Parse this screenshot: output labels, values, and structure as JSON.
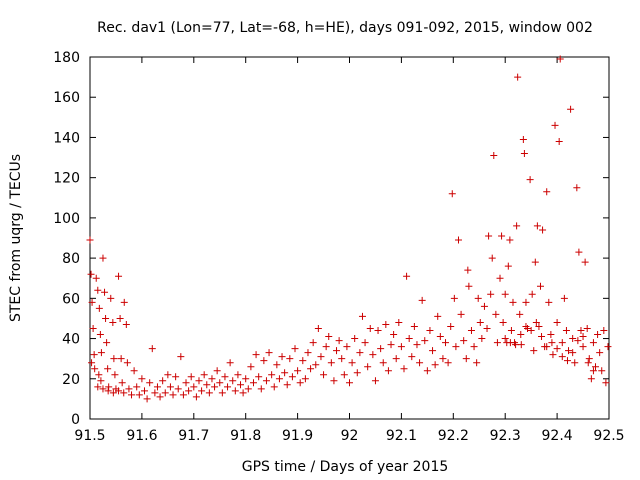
{
  "chart_data": {
    "type": "scatter",
    "title": "Rec. dav1 (Lon=77, Lat=-68, h=HE), days 091-092, 2015, window 002",
    "xlabel": "GPS time / Days of year 2015",
    "ylabel": "STEC from uqrg / TECUs",
    "xlim": [
      91.5,
      92.5
    ],
    "ylim": [
      0,
      180
    ],
    "xticks": [
      "91.5",
      "91.6",
      "91.7",
      "91.8",
      "91.9",
      "92",
      "92.1",
      "92.2",
      "92.3",
      "92.4",
      "92.5"
    ],
    "yticks": [
      "0",
      "20",
      "40",
      "60",
      "80",
      "100",
      "120",
      "140",
      "160",
      "180"
    ],
    "grid": false,
    "marker": "plus",
    "color": "#cc0000",
    "series": [
      {
        "name": "STEC",
        "points": [
          [
            91.5,
            89
          ],
          [
            91.502,
            72
          ],
          [
            91.504,
            58
          ],
          [
            91.506,
            45
          ],
          [
            91.508,
            32
          ],
          [
            91.503,
            28
          ],
          [
            91.509,
            25
          ],
          [
            91.512,
            70
          ],
          [
            91.515,
            64
          ],
          [
            91.518,
            55
          ],
          [
            91.52,
            42
          ],
          [
            91.522,
            33
          ],
          [
            91.517,
            22
          ],
          [
            91.521,
            19
          ],
          [
            91.525,
            80
          ],
          [
            91.528,
            63
          ],
          [
            91.53,
            50
          ],
          [
            91.532,
            38
          ],
          [
            91.534,
            25
          ],
          [
            91.536,
            16
          ],
          [
            91.54,
            60
          ],
          [
            91.544,
            48
          ],
          [
            91.546,
            30
          ],
          [
            91.548,
            22
          ],
          [
            91.55,
            15
          ],
          [
            91.555,
            71
          ],
          [
            91.558,
            50
          ],
          [
            91.56,
            30
          ],
          [
            91.562,
            18
          ],
          [
            91.566,
            58
          ],
          [
            91.57,
            47
          ],
          [
            91.572,
            28
          ],
          [
            91.575,
            15
          ],
          [
            91.515,
            16
          ],
          [
            91.525,
            15
          ],
          [
            91.535,
            14
          ],
          [
            91.545,
            13
          ],
          [
            91.555,
            14
          ],
          [
            91.565,
            13
          ],
          [
            91.58,
            12
          ],
          [
            91.585,
            24
          ],
          [
            91.59,
            16
          ],
          [
            91.595,
            12
          ],
          [
            91.6,
            20
          ],
          [
            91.605,
            14
          ],
          [
            91.61,
            10
          ],
          [
            91.615,
            18
          ],
          [
            91.62,
            35
          ],
          [
            91.625,
            13
          ],
          [
            91.63,
            16
          ],
          [
            91.635,
            11
          ],
          [
            91.64,
            19
          ],
          [
            91.645,
            13
          ],
          [
            91.65,
            22
          ],
          [
            91.655,
            16
          ],
          [
            91.66,
            12
          ],
          [
            91.665,
            21
          ],
          [
            91.67,
            15
          ],
          [
            91.675,
            31
          ],
          [
            91.68,
            12
          ],
          [
            91.685,
            18
          ],
          [
            91.69,
            14
          ],
          [
            91.695,
            21
          ],
          [
            91.7,
            16
          ],
          [
            91.705,
            11
          ],
          [
            91.71,
            19
          ],
          [
            91.715,
            14
          ],
          [
            91.72,
            22
          ],
          [
            91.725,
            17
          ],
          [
            91.73,
            13
          ],
          [
            91.735,
            20
          ],
          [
            91.74,
            16
          ],
          [
            91.745,
            24
          ],
          [
            91.75,
            18
          ],
          [
            91.755,
            13
          ],
          [
            91.76,
            21
          ],
          [
            91.765,
            16
          ],
          [
            91.77,
            28
          ],
          [
            91.775,
            19
          ],
          [
            91.78,
            14
          ],
          [
            91.785,
            22
          ],
          [
            91.79,
            17
          ],
          [
            91.795,
            13
          ],
          [
            91.8,
            20
          ],
          [
            91.805,
            15
          ],
          [
            91.81,
            26
          ],
          [
            91.815,
            18
          ],
          [
            91.82,
            32
          ],
          [
            91.825,
            21
          ],
          [
            91.83,
            15
          ],
          [
            91.835,
            29
          ],
          [
            91.84,
            19
          ],
          [
            91.845,
            33
          ],
          [
            91.85,
            22
          ],
          [
            91.855,
            16
          ],
          [
            91.86,
            27
          ],
          [
            91.865,
            20
          ],
          [
            91.87,
            31
          ],
          [
            91.875,
            23
          ],
          [
            91.88,
            17
          ],
          [
            91.885,
            30
          ],
          [
            91.89,
            21
          ],
          [
            91.895,
            35
          ],
          [
            91.9,
            24
          ],
          [
            91.905,
            18
          ],
          [
            91.91,
            29
          ],
          [
            91.915,
            20
          ],
          [
            91.92,
            33
          ],
          [
            91.925,
            25
          ],
          [
            91.93,
            38
          ],
          [
            91.935,
            27
          ],
          [
            91.94,
            45
          ],
          [
            91.945,
            31
          ],
          [
            91.95,
            22
          ],
          [
            91.955,
            36
          ],
          [
            91.96,
            41
          ],
          [
            91.965,
            28
          ],
          [
            91.97,
            19
          ],
          [
            91.975,
            34
          ],
          [
            91.98,
            39
          ],
          [
            91.985,
            30
          ],
          [
            91.99,
            22
          ],
          [
            91.995,
            36
          ],
          [
            92.0,
            18
          ],
          [
            92.005,
            28
          ],
          [
            92.01,
            40
          ],
          [
            92.015,
            23
          ],
          [
            92.02,
            33
          ],
          [
            92.025,
            51
          ],
          [
            92.03,
            38
          ],
          [
            92.035,
            26
          ],
          [
            92.04,
            45
          ],
          [
            92.045,
            32
          ],
          [
            92.05,
            19
          ],
          [
            92.055,
            44
          ],
          [
            92.06,
            35
          ],
          [
            92.065,
            28
          ],
          [
            92.07,
            47
          ],
          [
            92.075,
            24
          ],
          [
            92.08,
            37
          ],
          [
            92.085,
            42
          ],
          [
            92.09,
            30
          ],
          [
            92.095,
            48
          ],
          [
            92.1,
            36
          ],
          [
            92.105,
            25
          ],
          [
            92.11,
            71
          ],
          [
            92.115,
            40
          ],
          [
            92.12,
            31
          ],
          [
            92.125,
            46
          ],
          [
            92.13,
            37
          ],
          [
            92.135,
            28
          ],
          [
            92.14,
            59
          ],
          [
            92.145,
            39
          ],
          [
            92.15,
            24
          ],
          [
            92.155,
            44
          ],
          [
            92.16,
            34
          ],
          [
            92.165,
            27
          ],
          [
            92.17,
            51
          ],
          [
            92.175,
            41
          ],
          [
            92.18,
            30
          ],
          [
            92.185,
            38
          ],
          [
            92.19,
            28
          ],
          [
            92.195,
            46
          ],
          [
            92.198,
            112
          ],
          [
            92.202,
            60
          ],
          [
            92.205,
            36
          ],
          [
            92.21,
            89
          ],
          [
            92.215,
            52
          ],
          [
            92.22,
            39
          ],
          [
            92.225,
            30
          ],
          [
            92.228,
            74
          ],
          [
            92.23,
            66
          ],
          [
            92.235,
            44
          ],
          [
            92.24,
            36
          ],
          [
            92.245,
            28
          ],
          [
            92.248,
            60
          ],
          [
            92.252,
            48
          ],
          [
            92.255,
            40
          ],
          [
            92.26,
            56
          ],
          [
            92.265,
            45
          ],
          [
            92.268,
            91
          ],
          [
            92.272,
            62
          ],
          [
            92.275,
            80
          ],
          [
            92.278,
            131
          ],
          [
            92.282,
            52
          ],
          [
            92.285,
            38
          ],
          [
            92.29,
            70
          ],
          [
            92.293,
            91
          ],
          [
            92.296,
            48
          ],
          [
            92.3,
            62
          ],
          [
            92.303,
            38
          ],
          [
            92.306,
            76
          ],
          [
            92.309,
            89
          ],
          [
            92.312,
            44
          ],
          [
            92.315,
            58
          ],
          [
            92.318,
            38
          ],
          [
            92.322,
            96
          ],
          [
            92.324,
            170
          ],
          [
            92.328,
            52
          ],
          [
            92.331,
            37
          ],
          [
            92.335,
            139
          ],
          [
            92.337,
            132
          ],
          [
            92.34,
            58
          ],
          [
            92.343,
            45
          ],
          [
            92.348,
            119
          ],
          [
            92.352,
            62
          ],
          [
            92.355,
            34
          ],
          [
            92.358,
            78
          ],
          [
            92.362,
            96
          ],
          [
            92.365,
            46
          ],
          [
            92.368,
            66
          ],
          [
            92.372,
            94
          ],
          [
            92.376,
            36
          ],
          [
            92.38,
            113
          ],
          [
            92.384,
            58
          ],
          [
            92.388,
            42
          ],
          [
            92.392,
            32
          ],
          [
            92.396,
            146
          ],
          [
            92.4,
            48
          ],
          [
            92.404,
            138
          ],
          [
            92.406,
            179
          ],
          [
            92.41,
            38
          ],
          [
            92.414,
            60
          ],
          [
            92.418,
            44
          ],
          [
            92.422,
            34
          ],
          [
            92.426,
            154
          ],
          [
            92.43,
            40
          ],
          [
            92.434,
            28
          ],
          [
            92.438,
            115
          ],
          [
            92.442,
            83
          ],
          [
            92.446,
            44
          ],
          [
            92.45,
            36
          ],
          [
            92.454,
            78
          ],
          [
            92.458,
            45
          ],
          [
            92.462,
            30
          ],
          [
            92.466,
            20
          ],
          [
            92.47,
            38
          ],
          [
            92.474,
            26
          ],
          [
            92.478,
            42
          ],
          [
            92.482,
            33
          ],
          [
            92.486,
            24
          ],
          [
            92.49,
            44
          ],
          [
            92.494,
            18
          ],
          [
            92.498,
            36
          ],
          [
            92.3,
            40
          ],
          [
            92.31,
            38
          ],
          [
            92.32,
            37
          ],
          [
            92.33,
            42
          ],
          [
            92.34,
            46
          ],
          [
            92.35,
            44
          ],
          [
            92.36,
            48
          ],
          [
            92.37,
            41
          ],
          [
            92.38,
            36
          ],
          [
            92.39,
            38
          ],
          [
            92.4,
            35
          ],
          [
            92.41,
            31
          ],
          [
            92.42,
            29
          ],
          [
            92.43,
            33
          ],
          [
            92.44,
            39
          ],
          [
            92.45,
            41
          ],
          [
            92.46,
            28
          ],
          [
            92.47,
            24
          ]
        ]
      }
    ]
  }
}
